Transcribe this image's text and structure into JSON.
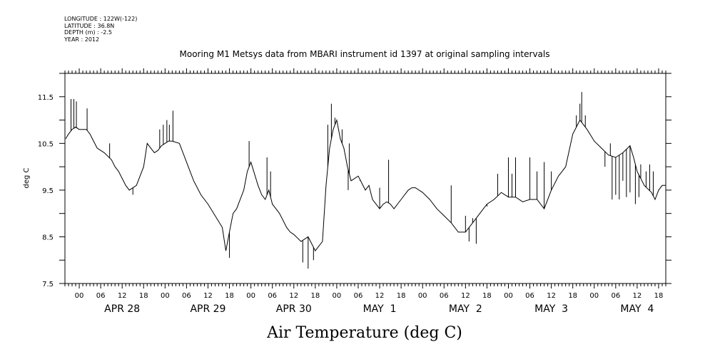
{
  "meta": {
    "longitude": "LONGITUDE : 122W(-122)",
    "latitude": "LATITUDE : 36.8N",
    "depth": "DEPTH (m) : -2.5",
    "year": "YEAR : 2012"
  },
  "chart_data": {
    "type": "line",
    "title": "Mooring M1 Metsys data from MBARI instrument id 1397 at original sampling intervals",
    "xlabel": "Air Temperature (deg C)",
    "ylabel": "deg C",
    "ylim": [
      7.5,
      12.0
    ],
    "yticks": [
      7.5,
      8.5,
      9.5,
      10.5,
      11.5
    ],
    "xlim_hours": [
      -4,
      164
    ],
    "hour_tick_labels": [
      "00",
      "06",
      "12",
      "18",
      "00",
      "06",
      "12",
      "18",
      "00",
      "06",
      "12",
      "18",
      "00",
      "06",
      "12",
      "18",
      "00",
      "06",
      "12",
      "18",
      "00",
      "06",
      "12",
      "18",
      "00",
      "06",
      "12",
      "18"
    ],
    "day_labels": [
      "APR 28",
      "APR 29",
      "APR 30",
      "MAY  1",
      "MAY  2",
      "MAY  3",
      "MAY  4"
    ],
    "grid": false,
    "series": [
      {
        "x_hours": [
          -3.8,
          -3,
          -2,
          -1,
          0,
          2,
          3,
          5,
          7,
          9,
          10,
          11,
          12,
          13,
          14,
          16,
          18,
          19,
          20,
          21,
          22,
          23,
          24,
          25,
          26,
          28,
          30,
          32,
          34,
          36,
          38,
          40,
          41,
          42,
          43,
          44,
          46,
          47,
          48,
          50,
          51,
          52,
          53,
          54,
          55,
          56,
          58,
          59,
          60,
          62,
          64,
          66,
          67,
          68,
          69,
          70,
          71,
          72,
          73,
          74,
          75,
          76,
          78,
          80,
          81,
          82,
          84,
          85,
          86,
          87,
          88,
          90,
          92,
          93,
          94,
          96,
          98,
          100,
          102,
          104,
          106,
          108,
          110,
          112,
          114,
          116,
          118,
          120,
          122,
          124,
          126,
          128,
          130,
          132,
          134,
          135,
          136,
          138,
          140,
          142,
          144,
          146,
          148,
          150,
          152,
          154,
          155,
          156,
          158,
          160,
          161,
          162,
          163,
          164
        ],
        "values": [
          10.6,
          10.7,
          10.8,
          10.85,
          10.8,
          10.8,
          10.7,
          10.4,
          10.3,
          10.15,
          10.0,
          9.9,
          9.75,
          9.6,
          9.5,
          9.6,
          10.0,
          10.5,
          10.4,
          10.3,
          10.35,
          10.45,
          10.5,
          10.55,
          10.55,
          10.5,
          10.1,
          9.7,
          9.4,
          9.2,
          8.95,
          8.7,
          8.2,
          8.6,
          9.0,
          9.1,
          9.5,
          9.9,
          10.1,
          9.6,
          9.4,
          9.3,
          9.5,
          9.2,
          9.1,
          9.0,
          8.7,
          8.6,
          8.55,
          8.4,
          8.5,
          8.2,
          8.3,
          8.4,
          9.6,
          10.4,
          10.8,
          11.0,
          10.6,
          10.4,
          10.0,
          9.7,
          9.8,
          9.5,
          9.6,
          9.3,
          9.1,
          9.2,
          9.25,
          9.2,
          9.1,
          9.3,
          9.5,
          9.55,
          9.55,
          9.45,
          9.3,
          9.1,
          8.95,
          8.8,
          8.6,
          8.6,
          8.8,
          9.0,
          9.2,
          9.3,
          9.45,
          9.35,
          9.35,
          9.25,
          9.3,
          9.3,
          9.1,
          9.5,
          9.8,
          9.9,
          10.0,
          10.7,
          11.0,
          10.8,
          10.55,
          10.4,
          10.25,
          10.2,
          10.3,
          10.45,
          10.2,
          9.9,
          9.6,
          9.45,
          9.3,
          9.5,
          9.6,
          9.6
        ],
        "spikes": [
          [
            -2.3,
            11.45
          ],
          [
            -1.5,
            11.45
          ],
          [
            -0.8,
            11.4
          ],
          [
            2.2,
            11.25
          ],
          [
            8.5,
            10.5
          ],
          [
            15,
            9.4
          ],
          [
            22.5,
            10.8
          ],
          [
            23.5,
            10.9
          ],
          [
            24.5,
            11.0
          ],
          [
            25.2,
            10.9
          ],
          [
            26.2,
            11.2
          ],
          [
            42,
            8.05
          ],
          [
            47.5,
            10.55
          ],
          [
            52.5,
            10.2
          ],
          [
            53.5,
            9.9
          ],
          [
            62.5,
            7.95
          ],
          [
            64,
            7.82
          ],
          [
            65.5,
            8.0
          ],
          [
            67.5,
            8.35
          ],
          [
            69.5,
            10.9
          ],
          [
            70.5,
            11.35
          ],
          [
            71.5,
            11.05
          ],
          [
            73.5,
            10.8
          ],
          [
            75.5,
            10.5
          ],
          [
            75.2,
            9.5
          ],
          [
            78.5,
            9.7
          ],
          [
            84,
            9.55
          ],
          [
            86.5,
            10.15
          ],
          [
            104,
            9.6
          ],
          [
            108,
            8.95
          ],
          [
            109,
            8.4
          ],
          [
            110,
            8.9
          ],
          [
            111,
            8.35
          ],
          [
            112,
            9.0
          ],
          [
            114,
            9.15
          ],
          [
            117,
            9.85
          ],
          [
            120,
            10.2
          ],
          [
            121,
            9.85
          ],
          [
            122,
            10.2
          ],
          [
            126,
            10.2
          ],
          [
            128,
            9.9
          ],
          [
            130,
            10.1
          ],
          [
            132,
            9.9
          ],
          [
            139,
            11.1
          ],
          [
            140,
            11.35
          ],
          [
            140.5,
            11.6
          ],
          [
            141.5,
            11.1
          ],
          [
            147,
            10.0
          ],
          [
            148.5,
            10.5
          ],
          [
            149,
            9.3
          ],
          [
            150,
            9.4
          ],
          [
            151,
            9.3
          ],
          [
            152,
            9.7
          ],
          [
            153,
            9.35
          ],
          [
            154,
            9.45
          ],
          [
            155.5,
            9.2
          ],
          [
            156.5,
            9.35
          ],
          [
            157,
            10.05
          ],
          [
            158.5,
            9.9
          ],
          [
            159.5,
            10.05
          ],
          [
            160.5,
            9.9
          ]
        ]
      }
    ]
  }
}
